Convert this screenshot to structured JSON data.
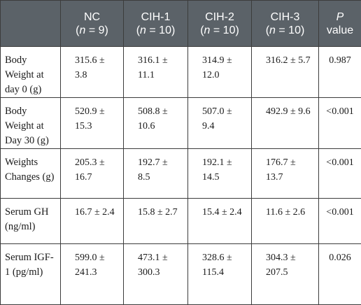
{
  "table": {
    "headers": [
      {
        "name": "",
        "n": ""
      },
      {
        "name": "NC",
        "n": "9"
      },
      {
        "name": "CIH-1",
        "n": "10"
      },
      {
        "name": "CIH-2",
        "n": "10"
      },
      {
        "name": "CIH-3",
        "n": "10"
      }
    ],
    "p_header": {
      "name": "P",
      "sub": "value"
    },
    "n_prefix": "(",
    "n_symbol": "n",
    "n_equals": " = ",
    "n_suffix": ")",
    "rows": [
      {
        "label": "Body Weight at day 0 (g)",
        "values": [
          "315.6 ± 3.8",
          "316.1 ± 11.1",
          "314.9 ± 12.0",
          "316.2 ± 5.7"
        ],
        "p": "0.987"
      },
      {
        "label": "Body Weight at Day 30 (g)",
        "values": [
          "520.9 ± 15.3",
          "508.8 ± 10.6",
          "507.0 ± 9.4",
          "492.9 ± 9.6"
        ],
        "p": "<0.001"
      },
      {
        "label": "Weights Changes (g)",
        "values": [
          "205.3 ± 16.7",
          "192.7 ± 8.5",
          "192.1 ± 14.5",
          "176.7 ± 13.7"
        ],
        "p": "<0.001"
      },
      {
        "label": "Serum GH (ng/ml)",
        "values": [
          "16.7 ± 2.4",
          "15.8 ± 2.7",
          "15.4 ± 2.4",
          "11.6 ± 2.6"
        ],
        "p": "<0.001"
      },
      {
        "label": "Serum IGF-1 (pg/ml)",
        "values": [
          "599.0 ± 241.3",
          "473.1 ± 300.3",
          "328.6 ± 115.4",
          "304.3 ± 207.5"
        ],
        "p": "0.026"
      }
    ]
  }
}
